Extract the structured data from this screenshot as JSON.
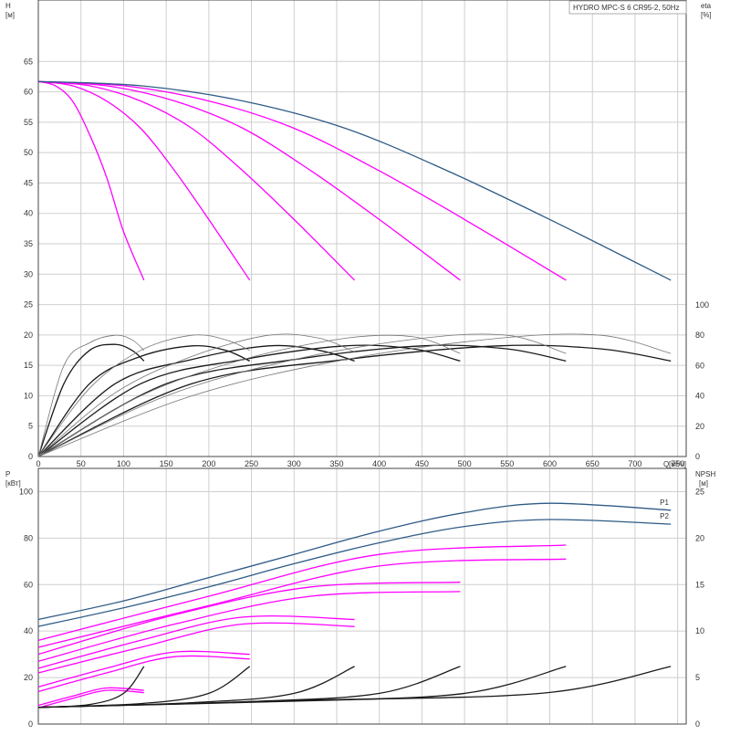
{
  "title": "HYDRO MPC-S 6 CR95-2, 50Hz",
  "colors": {
    "magenta": "#ff00ff",
    "blue": "#2e5b86",
    "black": "#1a1a1a",
    "gray": "#777777",
    "grid": "#cfcfcf"
  },
  "chart_data": [
    {
      "type": "line",
      "name": "head",
      "ylabel": "H",
      "yunit": "[м]",
      "ylim": [
        0,
        70
      ],
      "yticks": [
        0,
        5,
        10,
        15,
        20,
        25,
        30,
        35,
        40,
        45,
        50,
        55,
        60,
        65
      ],
      "xlim": [
        0,
        760
      ],
      "grid": true,
      "series": [
        {
          "color": "#ff00ff",
          "x": [
            0,
            20,
            40,
            60,
            80,
            100,
            124
          ],
          "y": [
            61.7,
            61,
            58.5,
            53,
            46,
            37,
            29
          ]
        },
        {
          "color": "#ff00ff",
          "x": [
            0,
            40,
            80,
            120,
            160,
            200,
            248
          ],
          "y": [
            61.7,
            61,
            58.5,
            54,
            47,
            39,
            29
          ]
        },
        {
          "color": "#ff00ff",
          "x": [
            0,
            60,
            120,
            180,
            240,
            300,
            371
          ],
          "y": [
            61.7,
            61,
            58.5,
            54,
            47,
            39,
            29
          ]
        },
        {
          "color": "#ff00ff",
          "x": [
            0,
            80,
            160,
            240,
            320,
            400,
            495
          ],
          "y": [
            61.7,
            61,
            58.5,
            54,
            47,
            39,
            29
          ]
        },
        {
          "color": "#ff00ff",
          "x": [
            0,
            100,
            200,
            300,
            400,
            500,
            619
          ],
          "y": [
            61.7,
            61,
            58.5,
            54,
            47,
            39,
            29
          ]
        },
        {
          "color": "#2e5b86",
          "x": [
            0,
            120,
            240,
            360,
            480,
            600,
            742
          ],
          "y": [
            61.7,
            61,
            58.5,
            54,
            47,
            39,
            29
          ]
        }
      ]
    },
    {
      "type": "line",
      "name": "efficiency",
      "ylabel": "eta",
      "yunit": "[%]",
      "ylim": [
        0,
        100
      ],
      "yticks": [
        0,
        20,
        40,
        60,
        80,
        100
      ],
      "xlabel": "Q",
      "xunit": "[м³/ч]",
      "xlim": [
        0,
        760
      ],
      "xticks": [
        0,
        50,
        100,
        150,
        200,
        250,
        300,
        350,
        400,
        450,
        500,
        550,
        600,
        650,
        700,
        750
      ],
      "series": [
        {
          "color": "#1a1a1a",
          "x": [
            0,
            30,
            60,
            90,
            110,
            124
          ],
          "y": [
            0,
            48,
            70,
            74,
            70,
            63
          ]
        },
        {
          "color": "#1a1a1a",
          "x": [
            0,
            60,
            120,
            180,
            220,
            248
          ],
          "y": [
            0,
            48,
            66,
            73,
            70,
            63
          ]
        },
        {
          "color": "#1a1a1a",
          "x": [
            0,
            90,
            180,
            270,
            330,
            371
          ],
          "y": [
            0,
            48,
            64,
            73,
            70,
            63
          ]
        },
        {
          "color": "#1a1a1a",
          "x": [
            0,
            120,
            240,
            360,
            440,
            495
          ],
          "y": [
            0,
            48,
            64,
            73,
            71,
            63
          ]
        },
        {
          "color": "#1a1a1a",
          "x": [
            0,
            150,
            300,
            450,
            550,
            619
          ],
          "y": [
            0,
            48,
            64,
            73,
            71,
            63
          ]
        },
        {
          "color": "#1a1a1a",
          "x": [
            0,
            180,
            360,
            540,
            660,
            742
          ],
          "y": [
            0,
            48,
            64,
            73,
            71,
            63
          ]
        },
        {
          "color": "#777777",
          "x": [
            0,
            30,
            60,
            90,
            110,
            124
          ],
          "y": [
            0,
            60,
            75,
            80,
            77,
            70
          ]
        },
        {
          "color": "#777777",
          "x": [
            0,
            60,
            120,
            180,
            220,
            248
          ],
          "y": [
            0,
            45,
            70,
            80,
            77,
            70
          ]
        },
        {
          "color": "#777777",
          "x": [
            0,
            90,
            180,
            270,
            330,
            371
          ],
          "y": [
            0,
            42,
            66,
            80,
            78,
            69
          ]
        },
        {
          "color": "#777777",
          "x": [
            0,
            120,
            240,
            360,
            440,
            495
          ],
          "y": [
            0,
            40,
            64,
            78,
            79,
            68
          ]
        },
        {
          "color": "#777777",
          "x": [
            0,
            150,
            300,
            450,
            550,
            619
          ],
          "y": [
            0,
            40,
            64,
            78,
            80,
            68
          ]
        },
        {
          "color": "#777777",
          "x": [
            0,
            180,
            360,
            540,
            660,
            742
          ],
          "y": [
            0,
            40,
            64,
            78,
            80,
            68
          ]
        }
      ]
    },
    {
      "type": "line",
      "name": "power-npsh",
      "ylabel": "P",
      "yunit": "[кВт]",
      "ylim": [
        0,
        110
      ],
      "yticks": [
        0,
        20,
        40,
        60,
        80,
        100
      ],
      "y2label": "NPSH",
      "y2unit": "[м]",
      "y2lim": [
        0,
        27.5
      ],
      "y2ticks": [
        0,
        5,
        10,
        15,
        20,
        25
      ],
      "xlim": [
        0,
        760
      ],
      "series": [
        {
          "name": "P1",
          "color": "#2e5b86",
          "x": [
            0,
            100,
            200,
            300,
            400,
            500,
            600,
            742
          ],
          "y": [
            45,
            53,
            63,
            73,
            83,
            91,
            95,
            92
          ]
        },
        {
          "name": "P2",
          "color": "#2e5b86",
          "x": [
            0,
            100,
            200,
            300,
            400,
            500,
            600,
            742
          ],
          "y": [
            42,
            50,
            59,
            69,
            78,
            85,
            88,
            86
          ]
        },
        {
          "color": "#ff00ff",
          "x": [
            0,
            40,
            80,
            124
          ],
          "y": [
            8,
            12,
            15.5,
            14.5
          ]
        },
        {
          "color": "#ff00ff",
          "x": [
            0,
            40,
            80,
            124
          ],
          "y": [
            7,
            11,
            14.5,
            13.5
          ]
        },
        {
          "color": "#ff00ff",
          "x": [
            0,
            80,
            160,
            248
          ],
          "y": [
            16,
            24,
            31,
            30
          ]
        },
        {
          "color": "#ff00ff",
          "x": [
            0,
            80,
            160,
            248
          ],
          "y": [
            14,
            22,
            29,
            28
          ]
        },
        {
          "color": "#ff00ff",
          "x": [
            0,
            120,
            240,
            371
          ],
          "y": [
            24,
            36,
            46,
            45
          ]
        },
        {
          "color": "#ff00ff",
          "x": [
            0,
            120,
            240,
            371
          ],
          "y": [
            22,
            33,
            43,
            42
          ]
        },
        {
          "color": "#ff00ff",
          "x": [
            0,
            160,
            320,
            495
          ],
          "y": [
            30,
            47,
            59,
            61
          ]
        },
        {
          "color": "#ff00ff",
          "x": [
            0,
            160,
            320,
            495
          ],
          "y": [
            27,
            43,
            55,
            57
          ]
        },
        {
          "color": "#ff00ff",
          "x": [
            0,
            200,
            400,
            619
          ],
          "y": [
            36,
            55,
            73,
            77
          ]
        },
        {
          "color": "#ff00ff",
          "x": [
            0,
            200,
            400,
            619
          ],
          "y": [
            33,
            51,
            68,
            71
          ]
        },
        {
          "axis": "y2",
          "color": "#1a1a1a",
          "x": [
            0,
            60,
            100,
            124
          ],
          "y": [
            1.8,
            2.1,
            3.3,
            6.2
          ]
        },
        {
          "axis": "y2",
          "color": "#1a1a1a",
          "x": [
            0,
            120,
            200,
            248
          ],
          "y": [
            1.8,
            2.2,
            3.3,
            6.2
          ]
        },
        {
          "axis": "y2",
          "color": "#1a1a1a",
          "x": [
            0,
            180,
            300,
            371
          ],
          "y": [
            1.8,
            2.3,
            3.3,
            6.2
          ]
        },
        {
          "axis": "y2",
          "color": "#1a1a1a",
          "x": [
            0,
            240,
            400,
            495
          ],
          "y": [
            1.8,
            2.4,
            3.3,
            6.2
          ]
        },
        {
          "axis": "y2",
          "color": "#1a1a1a",
          "x": [
            0,
            300,
            500,
            619
          ],
          "y": [
            1.8,
            2.5,
            3.3,
            6.2
          ]
        },
        {
          "axis": "y2",
          "color": "#1a1a1a",
          "x": [
            0,
            360,
            600,
            742
          ],
          "y": [
            1.8,
            2.6,
            3.4,
            6.2
          ]
        }
      ]
    }
  ]
}
